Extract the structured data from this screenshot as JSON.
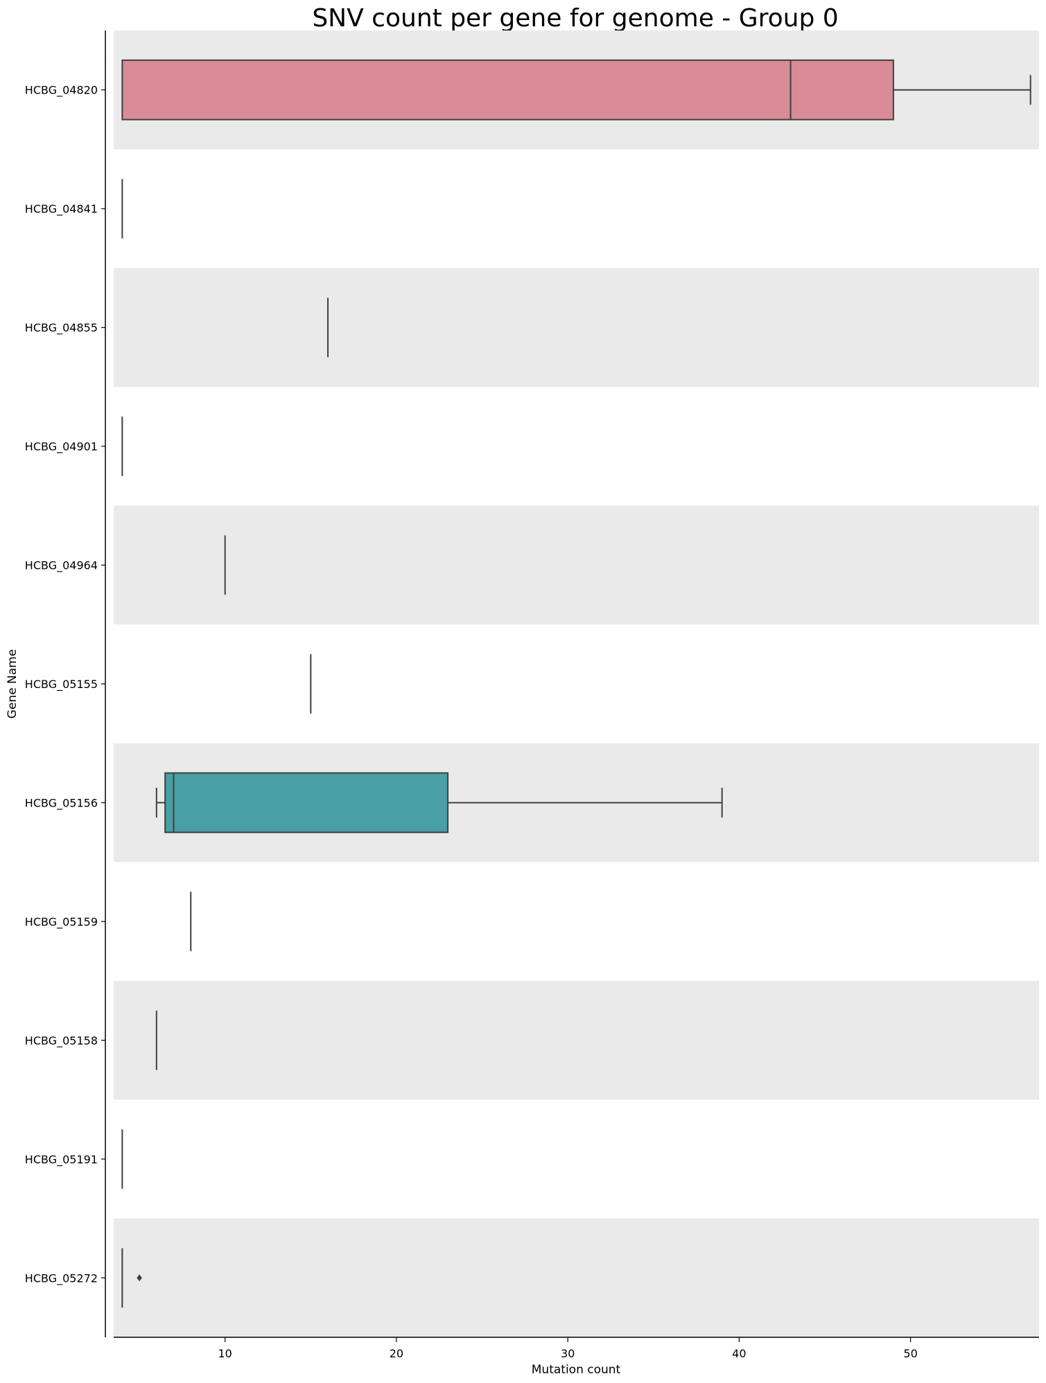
{
  "chart_data": {
    "type": "boxplot",
    "orientation": "horizontal",
    "title": "SNV count per gene for genome - Group 0",
    "xlabel": "Mutation count",
    "ylabel": "Gene Name",
    "xlim": [
      3.5,
      57.5
    ],
    "xticks": [
      10,
      20,
      30,
      40,
      50
    ],
    "grid": false,
    "alternating_row_shading": true,
    "colors": {
      "band": "#eaeaea",
      "stroke": "#3f3f3f",
      "HCBG_04820": "#d98b97",
      "HCBG_05156": "#4a9fa4"
    },
    "categories": [
      "HCBG_04820",
      "HCBG_04841",
      "HCBG_04855",
      "HCBG_04901",
      "HCBG_04964",
      "HCBG_05155",
      "HCBG_05156",
      "HCBG_05159",
      "HCBG_05158",
      "HCBG_05191",
      "HCBG_05272"
    ],
    "boxes": [
      {
        "name": "HCBG_04820",
        "whisker_low": 4,
        "q1": 4,
        "median": 43,
        "q3": 49,
        "whisker_high": 57,
        "outliers": []
      },
      {
        "name": "HCBG_04841",
        "whisker_low": 4,
        "q1": 4,
        "median": 4,
        "q3": 4,
        "whisker_high": 4,
        "outliers": []
      },
      {
        "name": "HCBG_04855",
        "whisker_low": 16,
        "q1": 16,
        "median": 16,
        "q3": 16,
        "whisker_high": 16,
        "outliers": []
      },
      {
        "name": "HCBG_04901",
        "whisker_low": 4,
        "q1": 4,
        "median": 4,
        "q3": 4,
        "whisker_high": 4,
        "outliers": []
      },
      {
        "name": "HCBG_04964",
        "whisker_low": 10,
        "q1": 10,
        "median": 10,
        "q3": 10,
        "whisker_high": 10,
        "outliers": []
      },
      {
        "name": "HCBG_05155",
        "whisker_low": 15,
        "q1": 15,
        "median": 15,
        "q3": 15,
        "whisker_high": 15,
        "outliers": []
      },
      {
        "name": "HCBG_05156",
        "whisker_low": 6,
        "q1": 6.5,
        "median": 7,
        "q3": 23,
        "whisker_high": 39,
        "outliers": []
      },
      {
        "name": "HCBG_05159",
        "whisker_low": 8,
        "q1": 8,
        "median": 8,
        "q3": 8,
        "whisker_high": 8,
        "outliers": []
      },
      {
        "name": "HCBG_05158",
        "whisker_low": 6,
        "q1": 6,
        "median": 6,
        "q3": 6,
        "whisker_high": 6,
        "outliers": []
      },
      {
        "name": "HCBG_05191",
        "whisker_low": 4,
        "q1": 4,
        "median": 4,
        "q3": 4,
        "whisker_high": 4,
        "outliers": []
      },
      {
        "name": "HCBG_05272",
        "whisker_low": 4,
        "q1": 4,
        "median": 4,
        "q3": 4,
        "whisker_high": 4,
        "outliers": [
          5
        ]
      }
    ]
  }
}
